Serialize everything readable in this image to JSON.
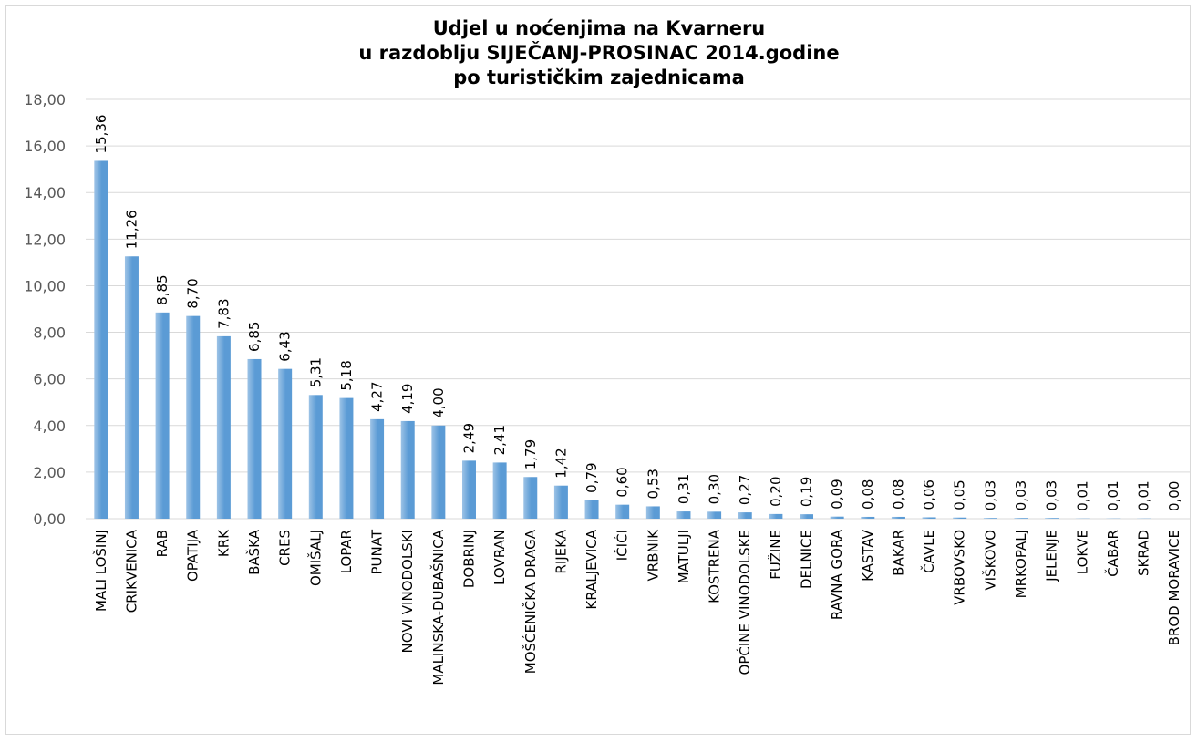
{
  "chart_data": {
    "type": "bar",
    "title_lines": [
      "Udjel u noćenjima na Kvarneru",
      "u razdoblju SIJEČANJ-PROSINAC 2014.godine",
      "po turističkim zajednicama"
    ],
    "xlabel": "",
    "ylabel": "",
    "ylim": [
      0,
      18
    ],
    "ytick_values": [
      0,
      2,
      4,
      6,
      8,
      10,
      12,
      14,
      16,
      18
    ],
    "ytick_labels": [
      "0,00",
      "2,00",
      "4,00",
      "6,00",
      "8,00",
      "10,00",
      "12,00",
      "14,00",
      "16,00",
      "18,00"
    ],
    "grid": true,
    "legend": "none",
    "bar_color": "#5b9bd5",
    "bar_color_light": "#9dc3e6",
    "categories": [
      "MALI LOŠINJ",
      "CRIKVENICA",
      "RAB",
      "OPATIJA",
      "KRK",
      "BAŠKA",
      "CRES",
      "OMIŠALJ",
      "LOPAR",
      "PUNAT",
      "NOVI VINODOLSKI",
      "MALINSKA-DUBAŠNICA",
      "DOBRINJ",
      "LOVRAN",
      "MOŠĆENIČKA DRAGA",
      "RIJEKA",
      "KRALJEVICA",
      "IČIĆI",
      "VRBNIK",
      "MATULJI",
      "KOSTRENA",
      "OPĆINE VINODOLSKE",
      "FUŽINE",
      "DELNICE",
      "RAVNA GORA",
      "KASTAV",
      "BAKAR",
      "ČAVLE",
      "VRBOVSKO",
      "VIŠKOVO",
      "MRKOPALJ",
      "JELENJE",
      "LOKVE",
      "ČABAR",
      "SKRAD",
      "BROD MORAVICE"
    ],
    "values": [
      15.36,
      11.26,
      8.85,
      8.7,
      7.83,
      6.85,
      6.43,
      5.31,
      5.18,
      4.27,
      4.19,
      4.0,
      2.49,
      2.41,
      1.79,
      1.42,
      0.79,
      0.6,
      0.53,
      0.31,
      0.3,
      0.27,
      0.2,
      0.19,
      0.09,
      0.08,
      0.08,
      0.06,
      0.05,
      0.03,
      0.03,
      0.03,
      0.01,
      0.01,
      0.01,
      0.0
    ],
    "value_labels": [
      "15,36",
      "11,26",
      "8,85",
      "8,70",
      "7,83",
      "6,85",
      "6,43",
      "5,31",
      "5,18",
      "4,27",
      "4,19",
      "4,00",
      "2,49",
      "2,41",
      "1,79",
      "1,42",
      "0,79",
      "0,60",
      "0,53",
      "0,31",
      "0,30",
      "0,27",
      "0,20",
      "0,19",
      "0,09",
      "0,08",
      "0,08",
      "0,06",
      "0,05",
      "0,03",
      "0,03",
      "0,03",
      "0,01",
      "0,01",
      "0,01",
      "0,00"
    ]
  }
}
